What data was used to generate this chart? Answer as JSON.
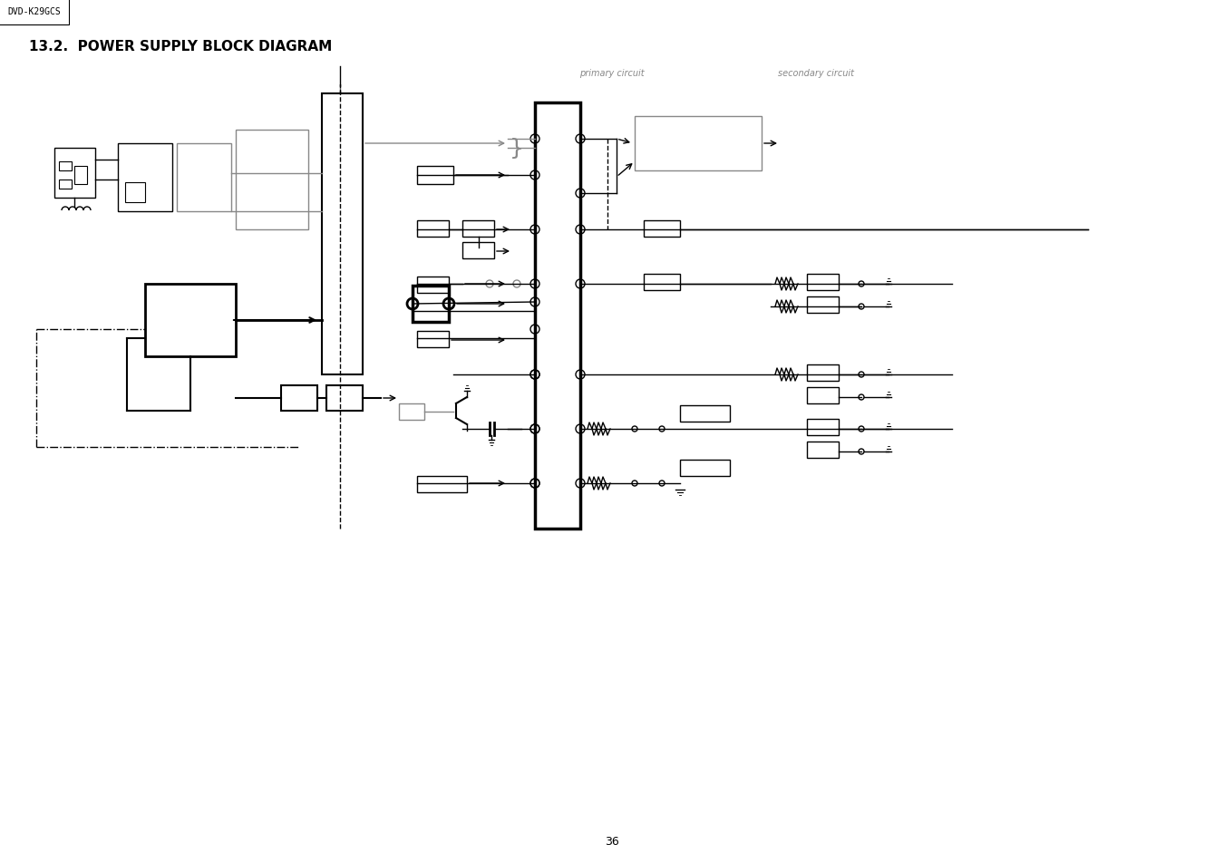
{
  "title": "13.2.  POWER SUPPLY BLOCK DIAGRAM",
  "header_label": "DVD-K29GCS",
  "page_number": "36",
  "background_color": "#ffffff",
  "line_color": "#000000",
  "gray_color": "#888888",
  "title_fontsize": 11,
  "header_fontsize": 7
}
